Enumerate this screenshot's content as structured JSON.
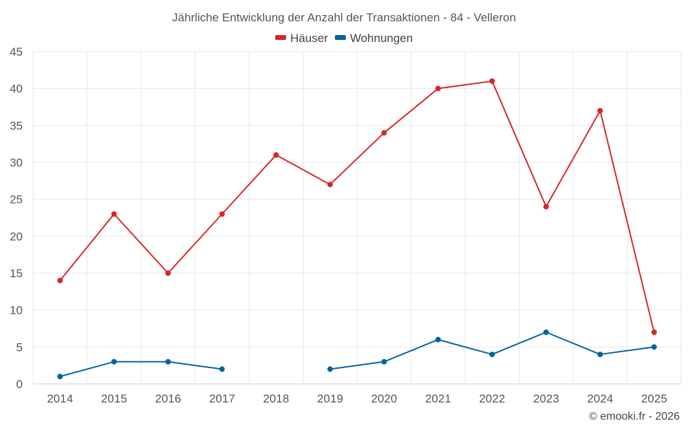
{
  "chart_data": {
    "type": "line",
    "title": "Jährliche Entwicklung der Anzahl der Transaktionen - 84 - Velleron",
    "categories": [
      "2014",
      "2015",
      "2016",
      "2017",
      "2018",
      "2019",
      "2020",
      "2021",
      "2022",
      "2023",
      "2024",
      "2025"
    ],
    "series": [
      {
        "name": "Häuser",
        "color": "#d62728",
        "values": [
          14,
          23,
          15,
          23,
          31,
          27,
          34,
          40,
          41,
          24,
          37,
          7
        ]
      },
      {
        "name": "Wohnungen",
        "color": "#03649e",
        "values": [
          1,
          3,
          3,
          2,
          null,
          2,
          3,
          6,
          4,
          7,
          4,
          5
        ]
      }
    ],
    "ylim": [
      0,
      45
    ],
    "yticks": [
      0,
      5,
      10,
      15,
      20,
      25,
      30,
      35,
      40,
      45
    ],
    "xlabel": "",
    "ylabel": "",
    "grid": true,
    "legend": "top-center"
  },
  "credit": "© emooki.fr - 2026"
}
